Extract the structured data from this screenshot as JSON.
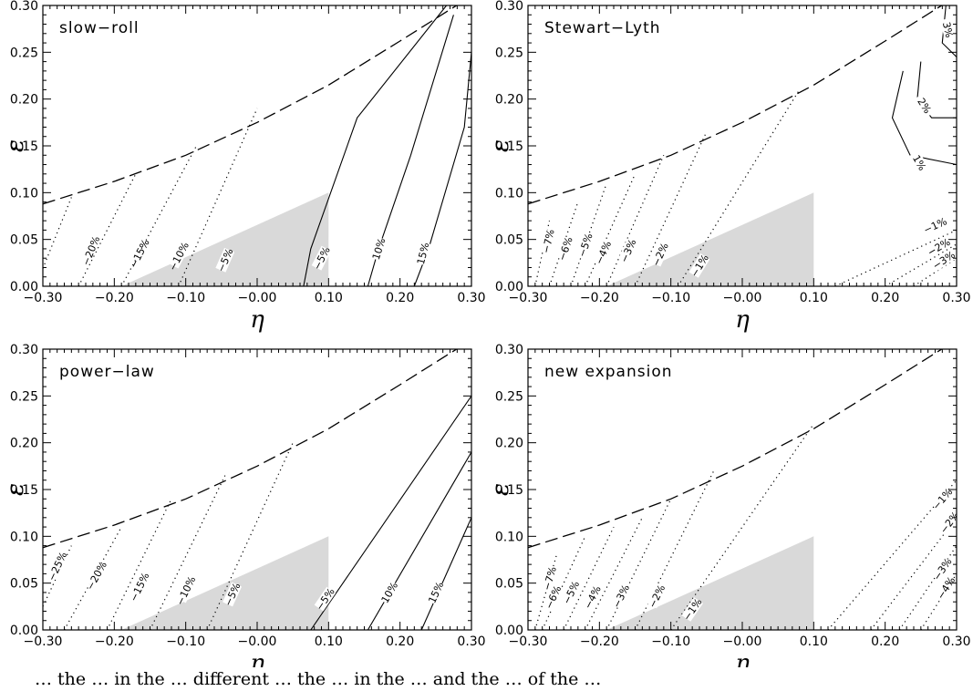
{
  "caption": "… the … in the … different … the … in the … and the … of the …",
  "chart_data": [
    {
      "type": "line",
      "title": "slow−roll",
      "xlabel": "η",
      "ylabel": "ε",
      "xlim": [
        -0.3,
        0.3
      ],
      "ylim": [
        0.0,
        0.3
      ],
      "xticks": [
        "−0.30",
        "−0.20",
        "−0.10",
        "−0.00",
        "0.10",
        "0.20",
        "0.30"
      ],
      "yticks": [
        "0.00",
        "0.05",
        "0.10",
        "0.15",
        "0.20",
        "0.25",
        "0.30"
      ],
      "boundary": [
        [
          -0.3,
          0.088
        ],
        [
          -0.2,
          0.112
        ],
        [
          -0.1,
          0.14
        ],
        [
          0.0,
          0.175
        ],
        [
          0.1,
          0.215
        ],
        [
          0.2,
          0.262
        ],
        [
          0.3,
          0.31
        ]
      ],
      "shaded_region": [
        [
          -0.19,
          0.0
        ],
        [
          0.1,
          0.0
        ],
        [
          0.1,
          0.1
        ]
      ],
      "contours": [
        {
          "label": "−20%",
          "style": "dotted",
          "points": [
            [
              -0.31,
              0.0
            ],
            [
              -0.26,
              0.095
            ]
          ],
          "label_at": [
            -0.233,
            0.038
          ]
        },
        {
          "label": "−15%",
          "style": "dotted",
          "points": [
            [
              -0.25,
              0.0
            ],
            [
              -0.17,
              0.12
            ]
          ],
          "label_at": [
            -0.165,
            0.035
          ]
        },
        {
          "label": "−10%",
          "style": "dotted",
          "points": [
            [
              -0.19,
              0.0
            ],
            [
              -0.085,
              0.15
            ]
          ],
          "label_at": [
            -0.11,
            0.032
          ]
        },
        {
          "label": "−5%",
          "style": "dotted",
          "points": [
            [
              -0.11,
              0.0
            ],
            [
              0.0,
              0.19
            ]
          ],
          "label_at": [
            -0.045,
            0.028
          ]
        },
        {
          "label": "−5%",
          "style": "solid",
          "points": [
            [
              0.065,
              0.0
            ],
            [
              0.075,
              0.04
            ],
            [
              0.14,
              0.18
            ],
            [
              0.265,
              0.3
            ]
          ],
          "label_at": [
            0.09,
            0.03
          ]
        },
        {
          "label": "10%",
          "style": "solid",
          "points": [
            [
              0.155,
              0.0
            ],
            [
              0.17,
              0.04
            ],
            [
              0.215,
              0.14
            ],
            [
              0.275,
              0.29
            ]
          ],
          "label_at": [
            0.17,
            0.04
          ]
        },
        {
          "label": "15%",
          "style": "solid",
          "points": [
            [
              0.22,
              0.0
            ],
            [
              0.24,
              0.04
            ],
            [
              0.29,
              0.17
            ],
            [
              0.3,
              0.25
            ]
          ],
          "label_at": [
            0.232,
            0.035
          ]
        }
      ]
    },
    {
      "type": "line",
      "title": "Stewart−Lyth",
      "xlabel": "η",
      "ylabel": "ε",
      "xlim": [
        -0.3,
        0.3
      ],
      "ylim": [
        0.0,
        0.3
      ],
      "xticks": [
        "−0.30",
        "−0.20",
        "−0.10",
        "−0.00",
        "0.10",
        "0.20",
        "0.30"
      ],
      "yticks": [
        "0.00",
        "0.05",
        "0.10",
        "0.15",
        "0.20",
        "0.25",
        "0.30"
      ],
      "boundary": [
        [
          -0.3,
          0.088
        ],
        [
          -0.2,
          0.112
        ],
        [
          -0.1,
          0.14
        ],
        [
          0.0,
          0.175
        ],
        [
          0.1,
          0.215
        ],
        [
          0.2,
          0.262
        ],
        [
          0.3,
          0.31
        ]
      ],
      "shaded_region": [
        [
          -0.19,
          0.0
        ],
        [
          0.1,
          0.0
        ],
        [
          0.1,
          0.1
        ]
      ],
      "contours": [
        {
          "label": "−7%",
          "style": "dotted",
          "points": [
            [
              -0.29,
              0.0
            ],
            [
              -0.27,
              0.07
            ]
          ],
          "label_at": [
            -0.272,
            0.048
          ]
        },
        {
          "label": "−6%",
          "style": "dotted",
          "points": [
            [
              -0.27,
              0.0
            ],
            [
              -0.23,
              0.09
            ]
          ],
          "label_at": [
            -0.248,
            0.04
          ]
        },
        {
          "label": "−5%",
          "style": "dotted",
          "points": [
            [
              -0.24,
              0.0
            ],
            [
              -0.19,
              0.11
            ]
          ],
          "label_at": [
            -0.22,
            0.044
          ]
        },
        {
          "label": "−4%",
          "style": "dotted",
          "points": [
            [
              -0.22,
              0.0
            ],
            [
              -0.15,
              0.12
            ]
          ],
          "label_at": [
            -0.195,
            0.036
          ]
        },
        {
          "label": "−3%",
          "style": "dotted",
          "points": [
            [
              -0.19,
              0.0
            ],
            [
              -0.11,
              0.14
            ]
          ],
          "label_at": [
            -0.16,
            0.038
          ]
        },
        {
          "label": "−2%",
          "style": "dotted",
          "points": [
            [
              -0.15,
              0.0
            ],
            [
              -0.05,
              0.165
            ]
          ],
          "label_at": [
            -0.115,
            0.034
          ]
        },
        {
          "label": "−1%",
          "style": "dotted",
          "points": [
            [
              -0.09,
              0.0
            ],
            [
              0.08,
              0.21
            ]
          ],
          "label_at": [
            -0.06,
            0.022
          ]
        },
        {
          "label": "1%",
          "style": "solid",
          "points": [
            [
              0.225,
              0.23
            ],
            [
              0.21,
              0.18
            ],
            [
              0.235,
              0.14
            ],
            [
              0.3,
              0.13
            ]
          ],
          "label_at": [
            0.248,
            0.132
          ]
        },
        {
          "label": "2%",
          "style": "solid",
          "points": [
            [
              0.25,
              0.24
            ],
            [
              0.245,
              0.2
            ],
            [
              0.265,
              0.18
            ],
            [
              0.3,
              0.18
            ]
          ],
          "label_at": [
            0.255,
            0.193
          ]
        },
        {
          "label": "3%",
          "style": "solid",
          "points": [
            [
              0.285,
              0.3
            ],
            [
              0.28,
              0.26
            ],
            [
              0.3,
              0.245
            ]
          ],
          "label_at": [
            0.288,
            0.274
          ]
        },
        {
          "label": "−1%",
          "style": "dotted",
          "points": [
            [
              0.13,
              0.0
            ],
            [
              0.3,
              0.06
            ]
          ],
          "label_at": [
            0.27,
            0.065
          ]
        },
        {
          "label": "−2%",
          "style": "dotted",
          "points": [
            [
              0.2,
              0.0
            ],
            [
              0.3,
              0.045
            ]
          ],
          "label_at": [
            0.275,
            0.042
          ]
        },
        {
          "label": "−3%",
          "style": "dotted",
          "points": [
            [
              0.24,
              0.0
            ],
            [
              0.3,
              0.03
            ]
          ],
          "label_at": [
            0.282,
            0.028
          ]
        }
      ]
    },
    {
      "type": "line",
      "title": "power−law",
      "xlabel": "η",
      "ylabel": "ε",
      "xlim": [
        -0.3,
        0.3
      ],
      "ylim": [
        0.0,
        0.3
      ],
      "xticks": [
        "−0.30",
        "−0.20",
        "−0.10",
        "−0.00",
        "0.10",
        "0.20",
        "0.30"
      ],
      "yticks": [
        "0.00",
        "0.05",
        "0.10",
        "0.15",
        "0.20",
        "0.25",
        "0.30"
      ],
      "boundary": [
        [
          -0.3,
          0.088
        ],
        [
          -0.2,
          0.112
        ],
        [
          -0.1,
          0.14
        ],
        [
          0.0,
          0.175
        ],
        [
          0.1,
          0.215
        ],
        [
          0.2,
          0.262
        ],
        [
          0.3,
          0.31
        ]
      ],
      "shaded_region": [
        [
          -0.19,
          0.0
        ],
        [
          0.1,
          0.0
        ],
        [
          0.1,
          0.1
        ]
      ],
      "contours": [
        {
          "label": "−25%",
          "style": "dotted",
          "points": [
            [
              -0.3,
              0.025
            ],
            [
              -0.26,
              0.09
            ]
          ],
          "label_at": [
            -0.28,
            0.068
          ]
        },
        {
          "label": "−20%",
          "style": "dotted",
          "points": [
            [
              -0.27,
              0.0
            ],
            [
              -0.19,
              0.11
            ]
          ],
          "label_at": [
            -0.225,
            0.058
          ]
        },
        {
          "label": "−15%",
          "style": "dotted",
          "points": [
            [
              -0.21,
              0.0
            ],
            [
              -0.12,
              0.14
            ]
          ],
          "label_at": [
            -0.165,
            0.046
          ]
        },
        {
          "label": "−10%",
          "style": "dotted",
          "points": [
            [
              -0.15,
              0.0
            ],
            [
              -0.045,
              0.165
            ]
          ],
          "label_at": [
            -0.1,
            0.042
          ]
        },
        {
          "label": "−5%",
          "style": "dotted",
          "points": [
            [
              -0.07,
              0.0
            ],
            [
              0.05,
              0.2
            ]
          ],
          "label_at": [
            -0.035,
            0.038
          ]
        },
        {
          "label": "−5%",
          "style": "solid",
          "points": [
            [
              0.075,
              0.0
            ],
            [
              0.3,
              0.25
            ]
          ],
          "label_at": [
            0.095,
            0.033
          ]
        },
        {
          "label": "10%",
          "style": "solid",
          "points": [
            [
              0.155,
              0.0
            ],
            [
              0.3,
              0.19
            ]
          ],
          "label_at": [
            0.185,
            0.04
          ]
        },
        {
          "label": "15%",
          "style": "solid",
          "points": [
            [
              0.23,
              0.0
            ],
            [
              0.3,
              0.12
            ]
          ],
          "label_at": [
            0.25,
            0.04
          ]
        }
      ]
    },
    {
      "type": "line",
      "title": "new expansion",
      "xlabel": "η",
      "ylabel": "ε",
      "xlim": [
        -0.3,
        0.3
      ],
      "ylim": [
        0.0,
        0.3
      ],
      "xticks": [
        "−0.30",
        "−0.20",
        "−0.10",
        "−0.00",
        "0.10",
        "0.20",
        "0.30"
      ],
      "yticks": [
        "0.00",
        "0.05",
        "0.10",
        "0.15",
        "0.20",
        "0.25",
        "0.30"
      ],
      "boundary": [
        [
          -0.3,
          0.088
        ],
        [
          -0.2,
          0.112
        ],
        [
          -0.1,
          0.14
        ],
        [
          0.0,
          0.175
        ],
        [
          0.1,
          0.215
        ],
        [
          0.2,
          0.262
        ],
        [
          0.3,
          0.31
        ]
      ],
      "shaded_region": [
        [
          -0.19,
          0.0
        ],
        [
          0.1,
          0.0
        ],
        [
          0.1,
          0.1
        ]
      ],
      "contours": [
        {
          "label": "−7%",
          "style": "dotted",
          "points": [
            [
              -0.29,
              0.0
            ],
            [
              -0.26,
              0.08
            ]
          ],
          "label_at": [
            -0.27,
            0.055
          ]
        },
        {
          "label": "−6%",
          "style": "dotted",
          "points": [
            [
              -0.28,
              0.0
            ],
            [
              -0.22,
              0.1
            ]
          ],
          "label_at": [
            -0.265,
            0.035
          ]
        },
        {
          "label": "−5%",
          "style": "dotted",
          "points": [
            [
              -0.25,
              0.0
            ],
            [
              -0.18,
              0.11
            ]
          ],
          "label_at": [
            -0.24,
            0.04
          ]
        },
        {
          "label": "−4%",
          "style": "dotted",
          "points": [
            [
              -0.22,
              0.0
            ],
            [
              -0.14,
              0.12
            ]
          ],
          "label_at": [
            -0.21,
            0.035
          ]
        },
        {
          "label": "−3%",
          "style": "dotted",
          "points": [
            [
              -0.19,
              0.0
            ],
            [
              -0.1,
              0.14
            ]
          ],
          "label_at": [
            -0.17,
            0.036
          ]
        },
        {
          "label": "−2%",
          "style": "dotted",
          "points": [
            [
              -0.15,
              0.0
            ],
            [
              -0.04,
              0.17
            ]
          ],
          "label_at": [
            -0.12,
            0.036
          ]
        },
        {
          "label": "−1%",
          "style": "dotted",
          "points": [
            [
              -0.1,
              0.0
            ],
            [
              0.1,
              0.22
            ]
          ],
          "label_at": [
            -0.07,
            0.022
          ]
        },
        {
          "label": "−1%",
          "style": "dotted",
          "points": [
            [
              0.12,
              0.0
            ],
            [
              0.3,
              0.16
            ]
          ],
          "label_at": [
            0.28,
            0.14
          ]
        },
        {
          "label": "−2%",
          "style": "dotted",
          "points": [
            [
              0.18,
              0.0
            ],
            [
              0.3,
              0.12
            ]
          ],
          "label_at": [
            0.29,
            0.115
          ]
        },
        {
          "label": "−3%",
          "style": "dotted",
          "points": [
            [
              0.22,
              0.0
            ],
            [
              0.3,
              0.09
            ]
          ],
          "label_at": [
            0.28,
            0.065
          ]
        },
        {
          "label": "−4%",
          "style": "dotted",
          "points": [
            [
              0.25,
              0.0
            ],
            [
              0.3,
              0.06
            ]
          ],
          "label_at": [
            0.285,
            0.045
          ]
        }
      ]
    }
  ]
}
